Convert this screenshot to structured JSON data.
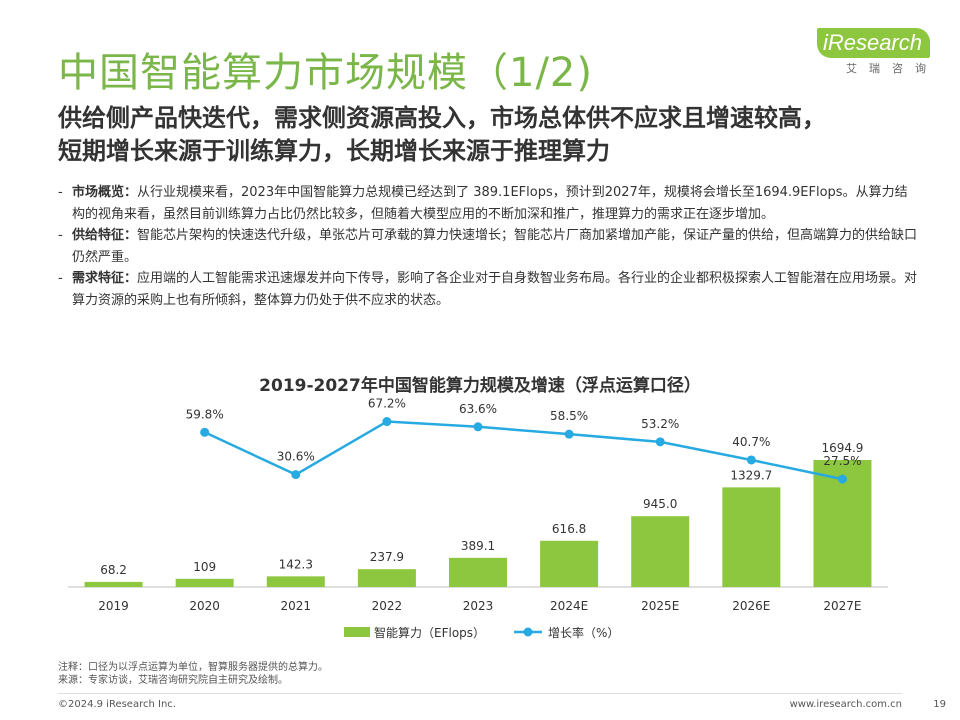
{
  "header": {
    "title": "中国智能算力市场规模（1/2)",
    "logo_text": "iResearch",
    "logo_sub": "艾瑞咨询",
    "subtitle_line1": "供给侧产品快迭代，需求侧资源高投入，市场总体供不应求且增速较高，",
    "subtitle_line2": "短期增长来源于训练算力，长期增长来源于推理算力"
  },
  "bullets": [
    {
      "label": "市场概览：",
      "text": "从行业规模来看，2023年中国智能算力总规模已经达到了 389.1EFlops，预计到2027年，规模将会增长至1694.9EFlops。从算力结构的视角来看，虽然目前训练算力占比仍然比较多，但随着大模型应用的不断加深和推广，推理算力的需求正在逐步增加。"
    },
    {
      "label": "供给特征：",
      "text": "智能芯片架构的快速迭代升级，单张芯片可承载的算力快速增长；智能芯片厂商加紧增加产能，保证产量的供给，但高端算力的供给缺口仍然严重。"
    },
    {
      "label": "需求特征：",
      "text": "应用端的人工智能需求迅速爆发并向下传导，影响了各企业对于自身数智业务布局。各行业的企业都积极探索人工智能潜在应用场景。对算力资源的采购上也有所倾斜，整体算力仍处于供不应求的状态。"
    }
  ],
  "chart_data": {
    "type": "bar",
    "title": "2019-2027年中国智能算力规模及增速（浮点运算口径）",
    "categories": [
      "2019",
      "2020",
      "2021",
      "2022",
      "2023",
      "2024E",
      "2025E",
      "2026E",
      "2027E"
    ],
    "series": [
      {
        "name": "智能算力（EFlops）",
        "type": "bar",
        "color": "#8dc63f",
        "values": [
          68.2,
          109,
          142.3,
          237.9,
          389.1,
          616.8,
          945.0,
          1329.7,
          1694.9
        ],
        "labels": [
          "68.2",
          "109",
          "142.3",
          "237.9",
          "389.1",
          "616.8",
          "945.0",
          "1329.7",
          "1694.9"
        ]
      },
      {
        "name": "增长率（%）",
        "type": "line",
        "color": "#27aae1",
        "values": [
          null,
          59.8,
          30.6,
          67.2,
          63.6,
          58.5,
          53.2,
          40.7,
          27.5
        ],
        "labels": [
          "",
          "59.8%",
          "30.6%",
          "67.2%",
          "63.6%",
          "58.5%",
          "53.2%",
          "40.7%",
          "27.5%"
        ]
      }
    ],
    "legend_position": "bottom"
  },
  "footnotes": {
    "note": "注释：口径为以浮点运算为单位，智算服务器提供的总算力。",
    "source": "来源：专家访谈，艾瑞咨询研究院自主研究及绘制。"
  },
  "footer": {
    "copyright": "©2024.9 iResearch Inc.",
    "website": "www.iresearch.com.cn",
    "page": "19"
  }
}
